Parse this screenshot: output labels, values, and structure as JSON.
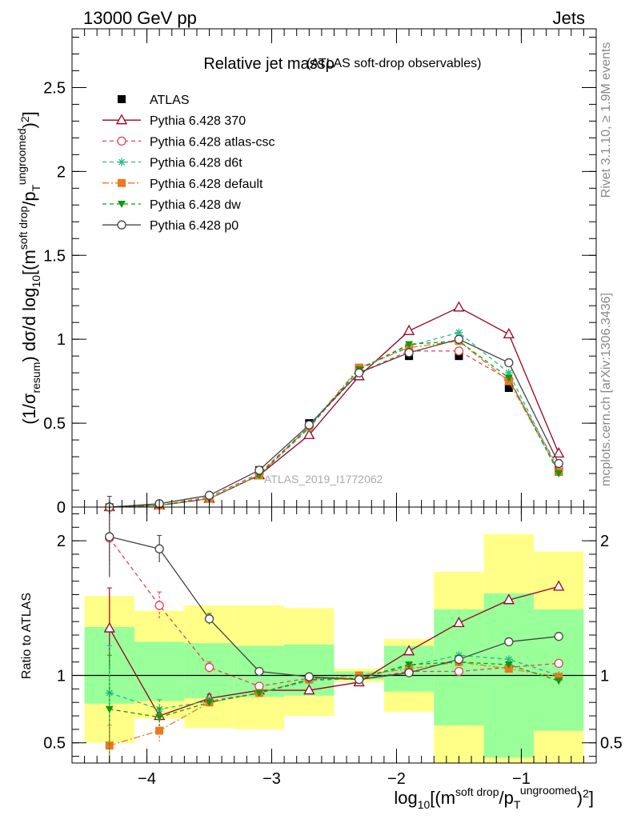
{
  "header": {
    "left": "13000 GeV pp",
    "right": "Jets"
  },
  "side_labels": {
    "rivet": "Rivet 3.1.10, ≥ 1.9M events",
    "mcplots": "mcplots.cern.ch [arXiv:1306.3436]"
  },
  "chart_data": [
    {
      "type": "line",
      "title": "Relative jet massρ",
      "subtitle": "(ATLAS soft-drop observables)",
      "watermark": "ATLAS_2019_I1772062",
      "ylabel": "(1/σresum) dσ/d log10[(m soft drop / pT ungroomed)²]",
      "xlabel": "log10[(m soft drop / pT ungroomed)²]",
      "xlim": [
        -4.6,
        -0.4
      ],
      "ylim": [
        0,
        2.85
      ],
      "yticks": [
        0,
        0.5,
        1,
        1.5,
        2,
        2.5
      ],
      "ytick_labels": [
        "0",
        "0.5",
        "1",
        "1.5",
        "2",
        "2.5"
      ],
      "x": [
        -4.3,
        -3.9,
        -3.5,
        -3.1,
        -2.7,
        -2.3,
        -1.9,
        -1.5,
        -1.1,
        -0.7
      ],
      "series": [
        {
          "name": "ATLAS",
          "color": "#000000",
          "marker": "square-filled",
          "dash": "none",
          "values": [
            0.0,
            0.01,
            0.06,
            0.22,
            0.5,
            0.83,
            0.9,
            0.9,
            0.71,
            0.21
          ]
        },
        {
          "name": "Pythia 6.428 370",
          "color": "#990022",
          "marker": "triangle-open",
          "dash": "solid",
          "values": [
            0.0,
            0.01,
            0.05,
            0.19,
            0.43,
            0.78,
            1.05,
            1.19,
            1.03,
            0.32
          ]
        },
        {
          "name": "Pythia 6.428 atlas-csc",
          "color": "#e8405a",
          "marker": "circle-open",
          "dash": "dashed",
          "values": [
            0.0,
            0.01,
            0.06,
            0.2,
            0.48,
            0.8,
            0.93,
            0.93,
            0.76,
            0.23
          ]
        },
        {
          "name": "Pythia 6.428 d6t",
          "color": "#22bb88",
          "marker": "star",
          "dash": "dashed",
          "values": [
            0.0,
            0.01,
            0.05,
            0.19,
            0.47,
            0.82,
            0.96,
            1.04,
            0.8,
            0.21
          ]
        },
        {
          "name": "Pythia 6.428 default",
          "color": "#ee7722",
          "marker": "square-filled",
          "dash": "dashdot",
          "values": [
            0.0,
            0.01,
            0.05,
            0.19,
            0.48,
            0.83,
            0.95,
            0.99,
            0.75,
            0.21
          ]
        },
        {
          "name": "Pythia 6.428 dw",
          "color": "#119911",
          "marker": "triangle-down-filled",
          "dash": "dashed",
          "values": [
            0.0,
            0.01,
            0.05,
            0.19,
            0.48,
            0.82,
            0.97,
            0.99,
            0.77,
            0.2
          ]
        },
        {
          "name": "Pythia 6.428 p0",
          "color": "#444444",
          "marker": "circle-open",
          "dash": "solid",
          "values": [
            0.0,
            0.02,
            0.07,
            0.22,
            0.49,
            0.8,
            0.92,
            1.0,
            0.86,
            0.26
          ]
        }
      ]
    },
    {
      "type": "line",
      "ylabel": "Ratio to ATLAS",
      "xlim": [
        -4.6,
        -0.4
      ],
      "ylim": [
        0.35,
        2.25
      ],
      "yticks": [
        0.5,
        1,
        2
      ],
      "ytick_labels": [
        "0.5",
        "1",
        "2"
      ],
      "xticks": [
        -4,
        -3,
        -2,
        -1
      ],
      "xtick_labels": [
        "−4",
        "−3",
        "−2",
        "−1"
      ],
      "bin_edges": [
        -4.5,
        -4.1,
        -3.7,
        -3.3,
        -2.9,
        -2.5,
        -2.1,
        -1.7,
        -1.3,
        -0.9,
        -0.5
      ],
      "band_outer": [
        [
          0.5,
          1.59
        ],
        [
          0.68,
          1.48
        ],
        [
          0.61,
          1.52
        ],
        [
          0.6,
          1.52
        ],
        [
          0.7,
          1.5
        ],
        [
          0.95,
          1.05
        ],
        [
          0.73,
          1.27
        ],
        [
          0.3,
          1.77
        ],
        [
          0.3,
          2.05
        ],
        [
          0.3,
          1.92
        ]
      ],
      "band_inner": [
        [
          0.79,
          1.36
        ],
        [
          0.81,
          1.25
        ],
        [
          0.83,
          1.24
        ],
        [
          0.84,
          1.22
        ],
        [
          0.85,
          1.23
        ],
        [
          0.97,
          1.03
        ],
        [
          0.88,
          1.22
        ],
        [
          0.63,
          1.49
        ],
        [
          0.39,
          1.61
        ],
        [
          0.59,
          1.49
        ]
      ],
      "band_colors": {
        "outer": "#ffff88",
        "inner": "#99ff99"
      },
      "x": [
        -4.3,
        -3.9,
        -3.5,
        -3.1,
        -2.7,
        -2.3,
        -1.9,
        -1.5,
        -1.1,
        -0.7
      ],
      "series": [
        {
          "name": "Pythia 6.428 370",
          "color": "#990022",
          "marker": "triangle-open",
          "dash": "solid",
          "values": [
            1.35,
            0.7,
            0.83,
            0.89,
            0.89,
            0.95,
            1.18,
            1.39,
            1.56,
            1.66
          ],
          "err": [
            0.3,
            0.05,
            0.03,
            0.01,
            0,
            0,
            0,
            0,
            0,
            0
          ]
        },
        {
          "name": "Pythia 6.428 atlas-csc",
          "color": "#e8405a",
          "marker": "circle-open",
          "dash": "dashed",
          "values": [
            2.02,
            1.52,
            1.06,
            0.92,
            0.98,
            0.97,
            1.03,
            1.03,
            1.06,
            1.09
          ],
          "err": [
            0.2,
            0.1,
            0.04,
            0.01,
            0,
            0,
            0,
            0,
            0,
            0
          ]
        },
        {
          "name": "Pythia 6.428 d6t",
          "color": "#22bb88",
          "marker": "star",
          "dash": "dashed",
          "values": [
            0.87,
            0.75,
            0.81,
            0.87,
            0.96,
            0.98,
            1.07,
            1.15,
            1.12,
            1.0
          ],
          "err": [
            0.35,
            0.07,
            0.03,
            0.01,
            0,
            0,
            0,
            0,
            0,
            0
          ]
        },
        {
          "name": "Pythia 6.428 default",
          "color": "#ee7722",
          "marker": "square-filled",
          "dash": "dashdot",
          "values": [
            0.48,
            0.59,
            0.8,
            0.87,
            0.97,
            1.0,
            1.05,
            1.1,
            1.05,
            0.99
          ],
          "err": [
            0.15,
            0.08,
            0.03,
            0.01,
            0,
            0,
            0,
            0,
            0,
            0
          ]
        },
        {
          "name": "Pythia 6.428 dw",
          "color": "#119911",
          "marker": "triangle-down-filled",
          "dash": "dashed",
          "values": [
            0.75,
            0.69,
            0.8,
            0.87,
            0.97,
            0.98,
            1.08,
            1.1,
            1.08,
            0.96
          ],
          "err": [
            0.4,
            0.07,
            0.03,
            0.01,
            0,
            0,
            0,
            0,
            0,
            0
          ]
        },
        {
          "name": "Pythia 6.428 p0",
          "color": "#444444",
          "marker": "circle-open",
          "dash": "solid",
          "values": [
            2.03,
            1.94,
            1.42,
            1.03,
            0.99,
            0.97,
            1.02,
            1.12,
            1.25,
            1.29
          ],
          "err": [
            0.3,
            0.1,
            0.04,
            0.01,
            0,
            0,
            0,
            0,
            0,
            0
          ]
        }
      ]
    }
  ]
}
